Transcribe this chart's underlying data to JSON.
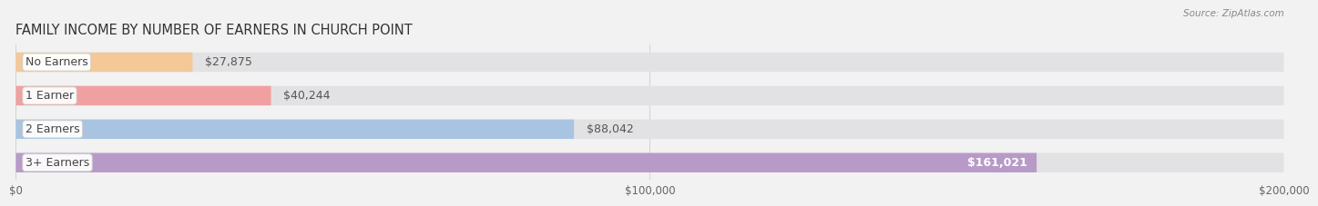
{
  "title": "FAMILY INCOME BY NUMBER OF EARNERS IN CHURCH POINT",
  "source": "Source: ZipAtlas.com",
  "categories": [
    "No Earners",
    "1 Earner",
    "2 Earners",
    "3+ Earners"
  ],
  "values": [
    27875,
    40244,
    88042,
    161021
  ],
  "bar_colors": [
    "#f5c898",
    "#f0a0a0",
    "#a8c4e0",
    "#b89ac8"
  ],
  "label_colors": [
    "#555555",
    "#555555",
    "#555555",
    "#ffffff"
  ],
  "value_labels": [
    "$27,875",
    "$40,244",
    "$88,042",
    "$161,021"
  ],
  "value_inside": [
    false,
    false,
    false,
    true
  ],
  "xlim": [
    0,
    200000
  ],
  "xtick_values": [
    0,
    100000,
    200000
  ],
  "xtick_labels": [
    "$0",
    "$100,000",
    "$200,000"
  ],
  "background_color": "#f2f2f2",
  "bar_bg_color": "#e2e2e4",
  "title_fontsize": 10.5,
  "label_fontsize": 9,
  "value_fontsize": 9,
  "bar_height": 0.58,
  "bar_gap": 0.42
}
